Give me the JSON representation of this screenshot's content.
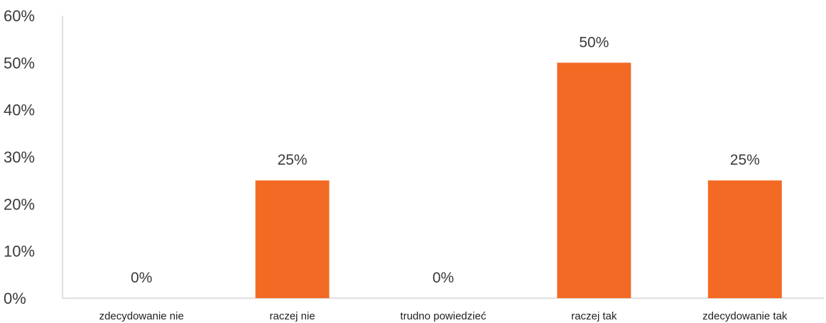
{
  "chart_data": {
    "type": "bar",
    "categories": [
      "zdecydowanie nie",
      "raczej nie",
      "trudno powiedzieć",
      "raczej tak",
      "zdecydowanie tak"
    ],
    "values": [
      0,
      25,
      0,
      50,
      25
    ],
    "data_labels": [
      "0%",
      "25%",
      "0%",
      "50%",
      "25%"
    ],
    "y_ticks": [
      "0%",
      "10%",
      "20%",
      "30%",
      "40%",
      "50%",
      "60%"
    ],
    "ylim": [
      0,
      60
    ],
    "grid": false,
    "legend": "none",
    "bar_color": "#F26A24",
    "axis_color": "#BFBFBF"
  }
}
